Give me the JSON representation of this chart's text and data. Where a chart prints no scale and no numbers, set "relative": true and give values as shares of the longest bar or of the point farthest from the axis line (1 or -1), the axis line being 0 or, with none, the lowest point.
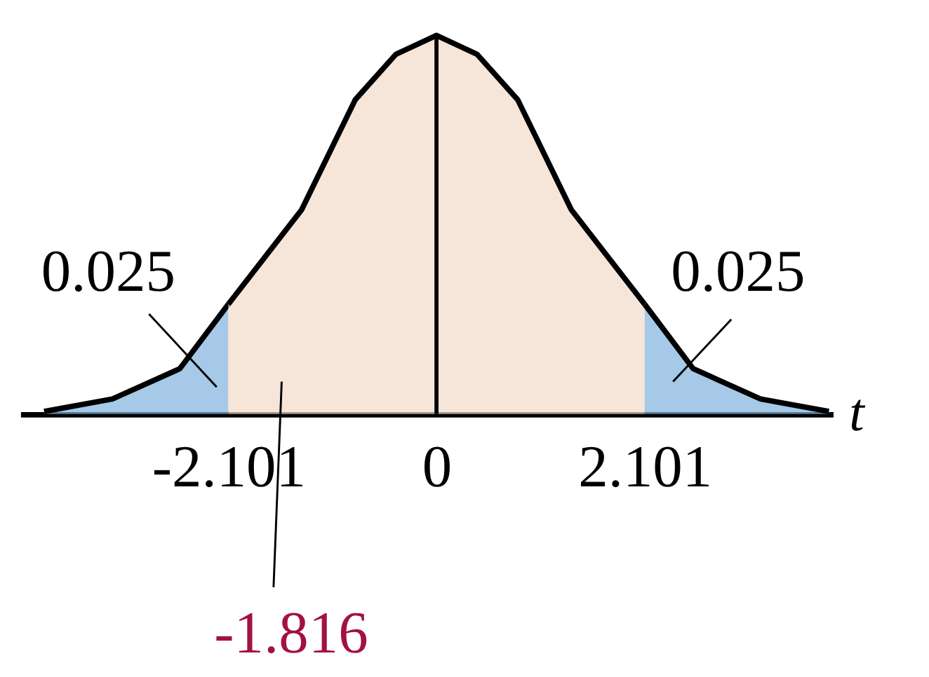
{
  "chart_data": {
    "type": "area",
    "relative": true,
    "xlabel": "t",
    "xlim": [
      -4.2,
      4.0
    ],
    "xticks": [
      -2.101,
      0,
      2.101
    ],
    "grid": false,
    "series": [
      {
        "color": "#7fb2dc",
        "x": [
          -3.96,
          -3.27,
          -2.59,
          -2.101
        ],
        "values": [
          0.007,
          0.04,
          0.12,
          0.29
        ]
      },
      {
        "color": "#f2dac9",
        "x": [
          -2.101,
          -1.36,
          -0.82,
          -0.41,
          0,
          0.41,
          0.82,
          1.36,
          2.101
        ],
        "values": [
          0.29,
          0.54,
          0.83,
          0.95,
          1,
          0.95,
          0.83,
          0.54,
          0.29
        ]
      },
      {
        "color": "#7fb2dc",
        "x": [
          2.101,
          2.59,
          3.27,
          3.96
        ],
        "values": [
          0.29,
          0.12,
          0.04,
          0.007
        ]
      }
    ],
    "ref_lines": [
      {
        "axis": "x",
        "value": 0,
        "color": "#000000"
      }
    ],
    "annotations": [
      "0.025",
      "0.025",
      "-1.816"
    ]
  }
}
